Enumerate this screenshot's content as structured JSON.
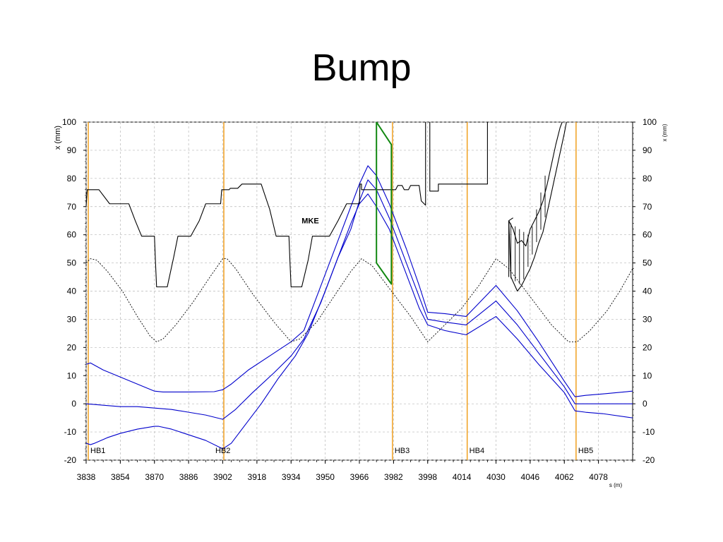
{
  "slide": {
    "title": "Bump"
  },
  "chart_data": {
    "type": "line",
    "title": "",
    "xlabel": "s (m)",
    "ylabel": "x (mm)",
    "ylabel_right": "x (mm)",
    "xlim": [
      3838,
      4094
    ],
    "ylim": [
      -20,
      100
    ],
    "grid": true,
    "x_ticks": [
      3838,
      3854,
      3870,
      3886,
      3902,
      3918,
      3934,
      3950,
      3966,
      3982,
      3998,
      4014,
      4030,
      4046,
      4062,
      4078
    ],
    "y_ticks": [
      -20,
      -10,
      0,
      10,
      20,
      30,
      40,
      50,
      60,
      70,
      80,
      90,
      100
    ],
    "annotations": [
      {
        "text": "MKE",
        "x": 3943,
        "y": 64
      }
    ],
    "markers": [
      {
        "label": "HB1",
        "x": 3839
      },
      {
        "label": "HB2",
        "x": 3902.5
      },
      {
        "label": "HB3",
        "x": 3981.5
      },
      {
        "label": "HB4",
        "x": 4016.5
      },
      {
        "label": "HB5",
        "x": 4067.5
      }
    ],
    "colors": {
      "orbit": "#0000cc",
      "aperture": "#000000",
      "envelope": "#000000",
      "kicker": "#118811",
      "marker": "#f0a020",
      "grid": "#b8b8b8"
    },
    "series": [
      {
        "role": "orbit",
        "points": [
          [
            3838,
            -14
          ],
          [
            3840,
            -14.5
          ],
          [
            3842,
            -14
          ],
          [
            3848,
            -12
          ],
          [
            3854,
            -10.5
          ],
          [
            3862,
            -9
          ],
          [
            3870,
            -8
          ],
          [
            3872,
            -8
          ],
          [
            3878,
            -9
          ],
          [
            3886,
            -11
          ],
          [
            3894,
            -13
          ],
          [
            3902,
            -16
          ],
          [
            3906,
            -14
          ],
          [
            3912,
            -8
          ],
          [
            3920,
            0
          ],
          [
            3928,
            9
          ],
          [
            3936,
            17
          ],
          [
            3942,
            25
          ],
          [
            3950,
            40
          ],
          [
            3958,
            56
          ],
          [
            3962,
            64
          ],
          [
            3966,
            71
          ],
          [
            3970,
            74.5
          ],
          [
            3974,
            70
          ],
          [
            3980,
            62
          ],
          [
            3988,
            46
          ],
          [
            3994,
            34
          ],
          [
            3998,
            28
          ],
          [
            4006,
            26
          ],
          [
            4016,
            24.5
          ],
          [
            4030,
            31
          ],
          [
            4040,
            23
          ],
          [
            4050,
            14
          ],
          [
            4062,
            4
          ],
          [
            4067,
            -2.5
          ],
          [
            4072,
            -3
          ],
          [
            4080,
            -3.5
          ],
          [
            4094,
            -5
          ]
        ]
      },
      {
        "role": "orbit",
        "points": [
          [
            3838,
            0
          ],
          [
            3846,
            -0.5
          ],
          [
            3854,
            -1
          ],
          [
            3862,
            -1
          ],
          [
            3870,
            -1.5
          ],
          [
            3878,
            -2
          ],
          [
            3886,
            -3
          ],
          [
            3894,
            -4
          ],
          [
            3902,
            -5.5
          ],
          [
            3908,
            -2
          ],
          [
            3916,
            4
          ],
          [
            3926,
            11
          ],
          [
            3934,
            17
          ],
          [
            3940,
            23
          ],
          [
            3948,
            36
          ],
          [
            3956,
            52
          ],
          [
            3962,
            62
          ],
          [
            3966,
            72
          ],
          [
            3970,
            79.5
          ],
          [
            3974,
            76
          ],
          [
            3980,
            66
          ],
          [
            3988,
            50
          ],
          [
            3994,
            38
          ],
          [
            3998,
            30
          ],
          [
            4006,
            29
          ],
          [
            4016,
            28
          ],
          [
            4030,
            36.5
          ],
          [
            4040,
            28
          ],
          [
            4050,
            18
          ],
          [
            4062,
            6
          ],
          [
            4067,
            0
          ],
          [
            4072,
            0
          ],
          [
            4080,
            0
          ],
          [
            4094,
            0
          ]
        ]
      },
      {
        "role": "orbit",
        "points": [
          [
            3838,
            14
          ],
          [
            3840,
            14.5
          ],
          [
            3846,
            12
          ],
          [
            3854,
            9.5
          ],
          [
            3862,
            7
          ],
          [
            3870,
            4.5
          ],
          [
            3874,
            4.2
          ],
          [
            3886,
            4.2
          ],
          [
            3898,
            4.3
          ],
          [
            3902,
            5
          ],
          [
            3906,
            7
          ],
          [
            3914,
            12
          ],
          [
            3924,
            17
          ],
          [
            3934,
            22
          ],
          [
            3940,
            26
          ],
          [
            3948,
            42
          ],
          [
            3956,
            58
          ],
          [
            3962,
            70
          ],
          [
            3966,
            78
          ],
          [
            3970,
            84.5
          ],
          [
            3974,
            81
          ],
          [
            3980,
            71
          ],
          [
            3988,
            55
          ],
          [
            3994,
            42
          ],
          [
            3998,
            32.5
          ],
          [
            4006,
            32
          ],
          [
            4016,
            31
          ],
          [
            4030,
            42
          ],
          [
            4040,
            33
          ],
          [
            4050,
            22
          ],
          [
            4062,
            8
          ],
          [
            4067,
            2.5
          ],
          [
            4072,
            3
          ],
          [
            4080,
            3.5
          ],
          [
            4094,
            4.5
          ]
        ]
      },
      {
        "role": "envelope",
        "dashed": true,
        "points": [
          [
            3838,
            50
          ],
          [
            3840,
            51.5
          ],
          [
            3843,
            51
          ],
          [
            3848,
            47
          ],
          [
            3855,
            40
          ],
          [
            3862,
            31
          ],
          [
            3868,
            24
          ],
          [
            3871,
            22
          ],
          [
            3874,
            23
          ],
          [
            3880,
            28
          ],
          [
            3888,
            36
          ],
          [
            3896,
            45
          ],
          [
            3902,
            51.5
          ],
          [
            3904,
            51.5
          ],
          [
            3908,
            48
          ],
          [
            3916,
            39
          ],
          [
            3926,
            29
          ],
          [
            3934,
            22
          ],
          [
            3938,
            23
          ],
          [
            3946,
            29
          ],
          [
            3954,
            38
          ],
          [
            3962,
            47
          ],
          [
            3967,
            51.5
          ],
          [
            3972,
            49
          ],
          [
            3980,
            41
          ],
          [
            3990,
            31
          ],
          [
            3998,
            22
          ],
          [
            4006,
            28
          ],
          [
            4014,
            34
          ],
          [
            4022,
            42
          ],
          [
            4030,
            51.5
          ],
          [
            4036,
            48
          ],
          [
            4046,
            38
          ],
          [
            4056,
            28
          ],
          [
            4064,
            22
          ],
          [
            4068,
            22
          ],
          [
            4074,
            26
          ],
          [
            4082,
            33
          ],
          [
            4088,
            40
          ],
          [
            4094,
            48
          ]
        ]
      },
      {
        "role": "aperture",
        "points": [
          [
            3838,
            70
          ],
          [
            3838.5,
            76
          ],
          [
            3844,
            76
          ],
          [
            3849,
            71
          ],
          [
            3858,
            71
          ],
          [
            3861,
            65
          ],
          [
            3864,
            59.5
          ],
          [
            3870,
            59.5
          ],
          [
            3870.5,
            50
          ],
          [
            3871,
            41.5
          ],
          [
            3876,
            41.5
          ],
          [
            3879,
            52
          ],
          [
            3881,
            59.5
          ],
          [
            3887,
            59.5
          ],
          [
            3891,
            65
          ],
          [
            3894,
            71
          ],
          [
            3901,
            71
          ],
          [
            3901.5,
            76
          ],
          [
            3905,
            76
          ],
          [
            3905.5,
            76.5
          ],
          [
            3909,
            76.5
          ],
          [
            3911,
            78
          ],
          [
            3920,
            78
          ],
          [
            3924,
            69
          ],
          [
            3927,
            59.5
          ],
          [
            3933,
            59.5
          ],
          [
            3933.5,
            50
          ],
          [
            3934,
            41.5
          ],
          [
            3939,
            41.5
          ],
          [
            3942,
            51
          ],
          [
            3944,
            59.5
          ],
          [
            3952,
            59.5
          ],
          [
            3956,
            65
          ],
          [
            3960,
            71
          ],
          [
            3966,
            71
          ],
          [
            3966.3,
            78
          ],
          [
            3967,
            78
          ],
          [
            3967,
            76
          ],
          [
            3983,
            76
          ],
          [
            3984,
            77.5
          ],
          [
            3986,
            77.5
          ],
          [
            3987,
            76
          ],
          [
            3989,
            76
          ],
          [
            3990,
            77.5
          ],
          [
            3994,
            77.5
          ],
          [
            3995,
            72
          ],
          [
            3997,
            70.5
          ],
          [
            3997,
            100
          ]
        ]
      },
      {
        "role": "aperture",
        "points": [
          [
            3999,
            100
          ],
          [
            3999,
            75.5
          ],
          [
            4003,
            75.5
          ],
          [
            4003,
            78
          ],
          [
            4026,
            78
          ],
          [
            4026,
            100
          ]
        ]
      },
      {
        "role": "aperture",
        "points": [
          [
            4038,
            66
          ],
          [
            4036,
            65
          ],
          [
            4037,
            45
          ],
          [
            4040,
            40
          ],
          [
            4042,
            42
          ],
          [
            4044,
            45
          ],
          [
            4046,
            48
          ],
          [
            4048,
            52
          ],
          [
            4050,
            57
          ],
          [
            4052,
            61
          ],
          [
            4054,
            68
          ],
          [
            4056,
            75
          ],
          [
            4058,
            82
          ],
          [
            4060,
            89
          ],
          [
            4062,
            96
          ],
          [
            4063,
            100
          ]
        ]
      },
      {
        "role": "aperture",
        "points": [
          [
            4036,
            65
          ],
          [
            4038,
            62
          ],
          [
            4040,
            57
          ],
          [
            4042,
            58
          ],
          [
            4044,
            56
          ],
          [
            4046,
            62
          ],
          [
            4048,
            65
          ],
          [
            4050,
            68
          ],
          [
            4052,
            72
          ],
          [
            4054,
            78
          ],
          [
            4056,
            85
          ],
          [
            4058,
            92
          ],
          [
            4060,
            98
          ],
          [
            4061,
            100
          ]
        ]
      },
      {
        "role": "aperture",
        "points": [
          [
            4036,
            65
          ],
          [
            4036,
            45
          ]
        ]
      },
      {
        "role": "kicker",
        "points": [
          [
            3974,
            100
          ],
          [
            3981,
            92
          ],
          [
            3981,
            42.5
          ],
          [
            3974,
            50
          ],
          [
            3974,
            100
          ]
        ]
      }
    ]
  }
}
